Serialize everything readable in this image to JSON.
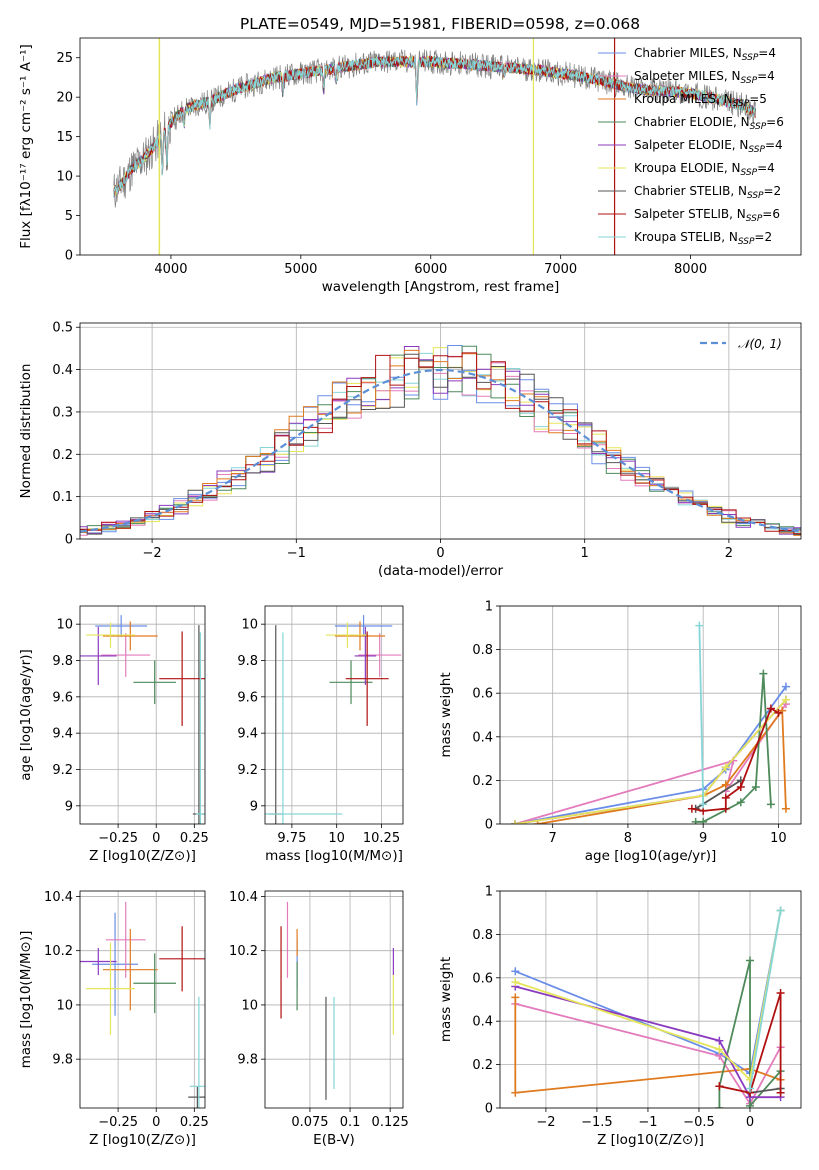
{
  "title": "PLATE=0549, MJD=51981, FIBERID=0598, z=0.068",
  "colors": {
    "cMILES": "#6a8ee8",
    "sMILES": "#e37bbc",
    "kMILES": "#e07a1f",
    "cELODIE": "#4e8a5a",
    "sELODIE": "#8b3bbf",
    "kELODIE": "#e5e55a",
    "cSTELIB": "#555555",
    "sSTELIB": "#b01010",
    "kSTELIB": "#86d6d8",
    "data": "#808080",
    "gauss": "#5b8fd6"
  },
  "chart_data": [
    {
      "id": "spectrum",
      "type": "line",
      "xlabel": "wavelength [Angstrom, rest frame]",
      "ylabel": "Flux [fλ10⁻¹⁷ erg cm⁻² s⁻¹ A⁻¹]",
      "xlim": [
        3300,
        8850
      ],
      "ylim": [
        0,
        27.5
      ],
      "xticks": [
        4000,
        5000,
        6000,
        7000,
        8000
      ],
      "yticks": [
        0,
        5,
        10,
        15,
        20,
        25
      ],
      "grid": false,
      "legend_position": "upper-right",
      "legend": [
        {
          "key": "cMILES",
          "pre": "Chabrier MILES, N",
          "sub": "SSP",
          "post": "=4"
        },
        {
          "key": "sMILES",
          "pre": "Salpeter MILES, N",
          "sub": "SSP",
          "post": "=4"
        },
        {
          "key": "kMILES",
          "pre": "Kroupa MILES, N",
          "sub": "SSP",
          "post": "=5"
        },
        {
          "key": "cELODIE",
          "pre": "Chabrier ELODIE, N",
          "sub": "SSP",
          "post": "=6"
        },
        {
          "key": "sELODIE",
          "pre": "Salpeter ELODIE, N",
          "sub": "SSP",
          "post": "=4"
        },
        {
          "key": "kELODIE",
          "pre": "Kroupa ELODIE, N",
          "sub": "SSP",
          "post": "=4"
        },
        {
          "key": "cSTELIB",
          "pre": "Chabrier STELIB, N",
          "sub": "SSP",
          "post": "=2"
        },
        {
          "key": "sSTELIB",
          "pre": "Salpeter STELIB, N",
          "sub": "SSP",
          "post": "=6"
        },
        {
          "key": "kSTELIB",
          "pre": "Kroupa STELIB, N",
          "sub": "SSP",
          "post": "=2"
        }
      ],
      "continuum": [
        [
          3560,
          8
        ],
        [
          3620,
          9
        ],
        [
          3700,
          11
        ],
        [
          3780,
          12
        ],
        [
          3880,
          14
        ],
        [
          3960,
          16
        ],
        [
          4100,
          18.5
        ],
        [
          4300,
          19.5
        ],
        [
          4500,
          21
        ],
        [
          4800,
          22.5
        ],
        [
          5200,
          23.5
        ],
        [
          5600,
          24.5
        ],
        [
          6000,
          24.5
        ],
        [
          6400,
          24
        ],
        [
          6800,
          23.5
        ],
        [
          7200,
          22.5
        ],
        [
          7600,
          21
        ],
        [
          8000,
          20.5
        ],
        [
          8400,
          19
        ],
        [
          8500,
          18
        ]
      ],
      "absorptions": [
        [
          3934,
          5
        ],
        [
          3969,
          5
        ],
        [
          4102,
          2
        ],
        [
          4300,
          3
        ],
        [
          4861,
          2
        ],
        [
          5175,
          2.5
        ],
        [
          5270,
          1.5
        ],
        [
          5893,
          5
        ],
        [
          6563,
          1
        ]
      ],
      "spikes": [
        {
          "x": 3910,
          "key": "kELODIE"
        },
        {
          "x": 3912,
          "key": "kELODIE"
        },
        {
          "x": 6790,
          "key": "kELODIE"
        },
        {
          "x": 7415,
          "key": "sSTELIB"
        }
      ]
    },
    {
      "id": "residuals",
      "type": "histogram",
      "xlabel": "(data-model)/error",
      "ylabel": "Normed distribution",
      "xlim": [
        -2.5,
        2.5
      ],
      "ylim": [
        0,
        0.51
      ],
      "xticks": [
        -2,
        -1,
        0,
        1,
        2
      ],
      "yticks": [
        0.0,
        0.1,
        0.2,
        0.3,
        0.4,
        0.5
      ],
      "grid": true,
      "bin_width": 0.1,
      "legend": "𝒩(0, 1)"
    },
    {
      "id": "age_vs_z",
      "type": "scatter",
      "xlabel": "Z [log10(Z/Z⊙)]",
      "ylabel": "age [log10(age/yr)]",
      "xlim": [
        -0.5,
        0.32
      ],
      "ylim": [
        8.9,
        10.1
      ],
      "xticks": [
        -0.25,
        0.0,
        0.25
      ],
      "yticks": [
        9.0,
        9.2,
        9.4,
        9.6,
        9.8,
        10.0
      ],
      "grid": true,
      "points": [
        {
          "key": "cMILES",
          "x": -0.23,
          "xerr": 0.17,
          "y": 9.99,
          "yerr": 0.06
        },
        {
          "key": "sMILES",
          "x": -0.2,
          "xerr": 0.16,
          "y": 9.83,
          "yerr": 0.12
        },
        {
          "key": "kMILES",
          "x": -0.17,
          "xerr": 0.18,
          "y": 9.935,
          "yerr": 0.08
        },
        {
          "key": "cELODIE",
          "x": -0.01,
          "xerr": 0.14,
          "y": 9.68,
          "yerr": 0.12
        },
        {
          "key": "sELODIE",
          "x": -0.38,
          "xerr": 0.12,
          "y": 9.825,
          "yerr": 0.16
        },
        {
          "key": "kELODIE",
          "x": -0.3,
          "xerr": 0.16,
          "y": 9.94,
          "yerr": 0.07
        },
        {
          "key": "cSTELIB",
          "x": 0.28,
          "xerr": 0.04,
          "y": 8.955,
          "yerr": 1.04
        },
        {
          "key": "sSTELIB",
          "x": 0.17,
          "xerr": 0.15,
          "y": 9.7,
          "yerr": 0.26
        },
        {
          "key": "kSTELIB",
          "x": 0.29,
          "xerr": 0.03,
          "y": 8.955,
          "yerr": 1.0
        }
      ]
    },
    {
      "id": "age_vs_mass",
      "type": "scatter",
      "xlabel": "mass [log10(M/M⊙)]",
      "ylabel": "",
      "xlim": [
        9.6,
        10.37
      ],
      "ylim": [
        8.9,
        10.1
      ],
      "xticks": [
        9.75,
        10.0,
        10.25
      ],
      "yticks": [
        9.0,
        9.2,
        9.4,
        9.6,
        9.8,
        10.0
      ],
      "grid": true,
      "points": [
        {
          "key": "cMILES",
          "x": 10.15,
          "xerr": 0.16,
          "y": 9.99,
          "yerr": 0.06
        },
        {
          "key": "sMILES",
          "x": 10.24,
          "xerr": 0.12,
          "y": 9.83,
          "yerr": 0.12
        },
        {
          "key": "kMILES",
          "x": 10.13,
          "xerr": 0.14,
          "y": 9.935,
          "yerr": 0.08
        },
        {
          "key": "cELODIE",
          "x": 10.08,
          "xerr": 0.12,
          "y": 9.68,
          "yerr": 0.12
        },
        {
          "key": "sELODIE",
          "x": 10.16,
          "xerr": 0.06,
          "y": 9.825,
          "yerr": 0.16
        },
        {
          "key": "kELODIE",
          "x": 10.06,
          "xerr": 0.12,
          "y": 9.94,
          "yerr": 0.07
        },
        {
          "key": "cSTELIB",
          "x": 9.66,
          "xerr": 0.04,
          "y": 8.955,
          "yerr": 1.04
        },
        {
          "key": "sSTELIB",
          "x": 10.17,
          "xerr": 0.12,
          "y": 9.7,
          "yerr": 0.26
        },
        {
          "key": "kSTELIB",
          "x": 9.7,
          "xerr": 0.33,
          "y": 8.955,
          "yerr": 1.0
        }
      ]
    },
    {
      "id": "weight_vs_age",
      "type": "line",
      "xlabel": "age [log10(age/yr)]",
      "ylabel": "mass weight",
      "xlim": [
        6.3,
        10.3
      ],
      "ylim": [
        0,
        1.0
      ],
      "xticks": [
        7,
        8,
        9,
        10
      ],
      "yticks": [
        0.0,
        0.2,
        0.4,
        0.6,
        0.8,
        1.0
      ],
      "grid": true,
      "series": [
        {
          "key": "cMILES",
          "points": [
            [
              6.5,
              0.0
            ],
            [
              9.0,
              0.16
            ],
            [
              9.3,
              0.25
            ],
            [
              10.1,
              0.63
            ]
          ]
        },
        {
          "key": "sMILES",
          "points": [
            [
              6.5,
              0.0
            ],
            [
              9.4,
              0.29
            ],
            [
              9.3,
              0.15
            ],
            [
              10.1,
              0.55
            ]
          ]
        },
        {
          "key": "kMILES",
          "points": [
            [
              6.8,
              0.0
            ],
            [
              9.0,
              0.13
            ],
            [
              9.3,
              0.18
            ],
            [
              10.05,
              0.52
            ],
            [
              10.1,
              0.07
            ]
          ]
        },
        {
          "key": "cELODIE",
          "points": [
            [
              8.9,
              0.01
            ],
            [
              9.0,
              0.01
            ],
            [
              9.5,
              0.1
            ],
            [
              9.7,
              0.17
            ],
            [
              9.8,
              0.69
            ],
            [
              9.9,
              0.09
            ]
          ]
        },
        {
          "key": "sELODIE",
          "points": [
            [
              6.5,
              0.0
            ],
            [
              9.0,
              0.13
            ],
            [
              9.3,
              0.26
            ],
            [
              10.1,
              0.57
            ]
          ]
        },
        {
          "key": "kELODIE",
          "points": [
            [
              6.5,
              0.0
            ],
            [
              9.0,
              0.13
            ],
            [
              9.3,
              0.26
            ],
            [
              10.1,
              0.57
            ]
          ]
        },
        {
          "key": "cSTELIB",
          "points": [
            [
              8.9,
              0.07
            ],
            [
              9.5,
              0.2
            ]
          ]
        },
        {
          "key": "sSTELIB",
          "points": [
            [
              8.85,
              0.07
            ],
            [
              9.0,
              0.06
            ],
            [
              9.3,
              0.07
            ],
            [
              9.3,
              0.12
            ],
            [
              9.5,
              0.17
            ],
            [
              9.9,
              0.53
            ],
            [
              10.0,
              0.51
            ]
          ]
        },
        {
          "key": "kSTELIB",
          "points": [
            [
              8.95,
              0.91
            ],
            [
              9.0,
              0.09
            ]
          ]
        }
      ]
    },
    {
      "id": "mass_vs_z",
      "type": "scatter",
      "xlabel": "Z [log10(Z/Z⊙)]",
      "ylabel": "mass [log10(M/M⊙)]",
      "xlim": [
        -0.5,
        0.32
      ],
      "ylim": [
        9.62,
        10.42
      ],
      "xticks": [
        -0.25,
        0.0,
        0.25
      ],
      "yticks": [
        9.8,
        10.0,
        10.2,
        10.4
      ],
      "grid": true,
      "points": [
        {
          "key": "cMILES",
          "x": -0.27,
          "xerr": 0.15,
          "y": 10.15,
          "yerr": 0.19
        },
        {
          "key": "sMILES",
          "x": -0.2,
          "xerr": 0.13,
          "y": 10.24,
          "yerr": 0.14
        },
        {
          "key": "kMILES",
          "x": -0.17,
          "xerr": 0.18,
          "y": 10.13,
          "yerr": 0.15
        },
        {
          "key": "cELODIE",
          "x": -0.01,
          "xerr": 0.14,
          "y": 10.08,
          "yerr": 0.11
        },
        {
          "key": "sELODIE",
          "x": -0.38,
          "xerr": 0.12,
          "y": 10.16,
          "yerr": 0.05
        },
        {
          "key": "kELODIE",
          "x": -0.3,
          "xerr": 0.16,
          "y": 10.06,
          "yerr": 0.17
        },
        {
          "key": "cSTELIB",
          "x": 0.27,
          "xerr": 0.06,
          "y": 9.66,
          "yerr": 0.04
        },
        {
          "key": "sSTELIB",
          "x": 0.17,
          "xerr": 0.15,
          "y": 10.17,
          "yerr": 0.12
        },
        {
          "key": "kSTELIB",
          "x": 0.28,
          "xerr": 0.06,
          "y": 9.7,
          "yerr": 0.33
        }
      ]
    },
    {
      "id": "mass_vs_ebv",
      "type": "scatter",
      "xlabel": "E(B-V)",
      "ylabel": "",
      "xlim": [
        0.047,
        0.133
      ],
      "ylim": [
        9.62,
        10.42
      ],
      "xticks": [
        0.075,
        0.1,
        0.125
      ],
      "yticks": [
        9.8,
        10.0,
        10.2,
        10.4
      ],
      "grid": true,
      "points": [
        {
          "key": "cMILES",
          "x": 0.067,
          "xerr": 0,
          "y": 10.15,
          "yerr": 0.09
        },
        {
          "key": "sMILES",
          "x": 0.061,
          "xerr": 0,
          "y": 10.24,
          "yerr": 0.14
        },
        {
          "key": "kMILES",
          "x": 0.067,
          "xerr": 0,
          "y": 10.23,
          "yerr": 0.05
        },
        {
          "key": "cELODIE",
          "x": 0.067,
          "xerr": 0,
          "y": 10.07,
          "yerr": 0.09
        },
        {
          "key": "sELODIE",
          "x": 0.127,
          "xerr": 0,
          "y": 10.16,
          "yerr": 0.05
        },
        {
          "key": "kELODIE",
          "x": 0.127,
          "xerr": 0,
          "y": 10.0,
          "yerr": 0.11
        },
        {
          "key": "cSTELIB",
          "x": 0.085,
          "xerr": 0,
          "y": 9.84,
          "yerr": 0.19
        },
        {
          "key": "sSTELIB",
          "x": 0.057,
          "xerr": 0,
          "y": 10.12,
          "yerr": 0.17
        },
        {
          "key": "kSTELIB",
          "x": 0.09,
          "xerr": 0,
          "y": 9.86,
          "yerr": 0.17
        }
      ]
    },
    {
      "id": "weight_vs_z",
      "type": "line",
      "xlabel": "Z [log10(Z/Z⊙)]",
      "ylabel": "mass weight",
      "xlim": [
        -2.45,
        0.5
      ],
      "ylim": [
        0,
        1.0
      ],
      "xticks": [
        -2.0,
        -1.5,
        -1.0,
        -0.5,
        0.0
      ],
      "yticks": [
        0.0,
        0.2,
        0.4,
        0.6,
        0.8,
        1.0
      ],
      "grid": true,
      "series": [
        {
          "key": "cMILES",
          "points": [
            [
              -2.3,
              0.63
            ],
            [
              -0.3,
              0.25
            ],
            [
              0.0,
              0.16
            ],
            [
              0.3,
              0.91
            ]
          ]
        },
        {
          "key": "sMILES",
          "points": [
            [
              -2.3,
              0.48
            ],
            [
              -0.3,
              0.24
            ],
            [
              0.0,
              0.02
            ],
            [
              0.3,
              0.28
            ]
          ]
        },
        {
          "key": "kMILES",
          "points": [
            [
              -2.3,
              0.51
            ],
            [
              -2.3,
              0.07
            ],
            [
              0.0,
              0.18
            ],
            [
              0.3,
              0.13
            ]
          ]
        },
        {
          "key": "cELODIE",
          "points": [
            [
              -0.3,
              0.0
            ],
            [
              -0.3,
              0.1
            ],
            [
              0.0,
              0.68
            ],
            [
              0.0,
              0.01
            ],
            [
              0.3,
              0.17
            ]
          ]
        },
        {
          "key": "sELODIE",
          "points": [
            [
              -2.3,
              0.56
            ],
            [
              -0.3,
              0.31
            ],
            [
              0.0,
              0.05
            ],
            [
              0.3,
              0.05
            ]
          ]
        },
        {
          "key": "kELODIE",
          "points": [
            [
              -2.3,
              0.58
            ],
            [
              -0.3,
              0.27
            ],
            [
              0.0,
              0.13
            ],
            [
              0.3,
              0.91
            ]
          ]
        },
        {
          "key": "cSTELIB",
          "points": [
            [
              0.0,
              0.07
            ],
            [
              0.3,
              0.09
            ]
          ]
        },
        {
          "key": "sSTELIB",
          "points": [
            [
              -0.3,
              0.1
            ],
            [
              0.0,
              0.07
            ],
            [
              0.3,
              0.53
            ],
            [
              0.3,
              0.07
            ]
          ]
        },
        {
          "key": "kSTELIB",
          "points": [
            [
              0.0,
              0.09
            ],
            [
              0.3,
              0.91
            ]
          ]
        }
      ]
    }
  ]
}
